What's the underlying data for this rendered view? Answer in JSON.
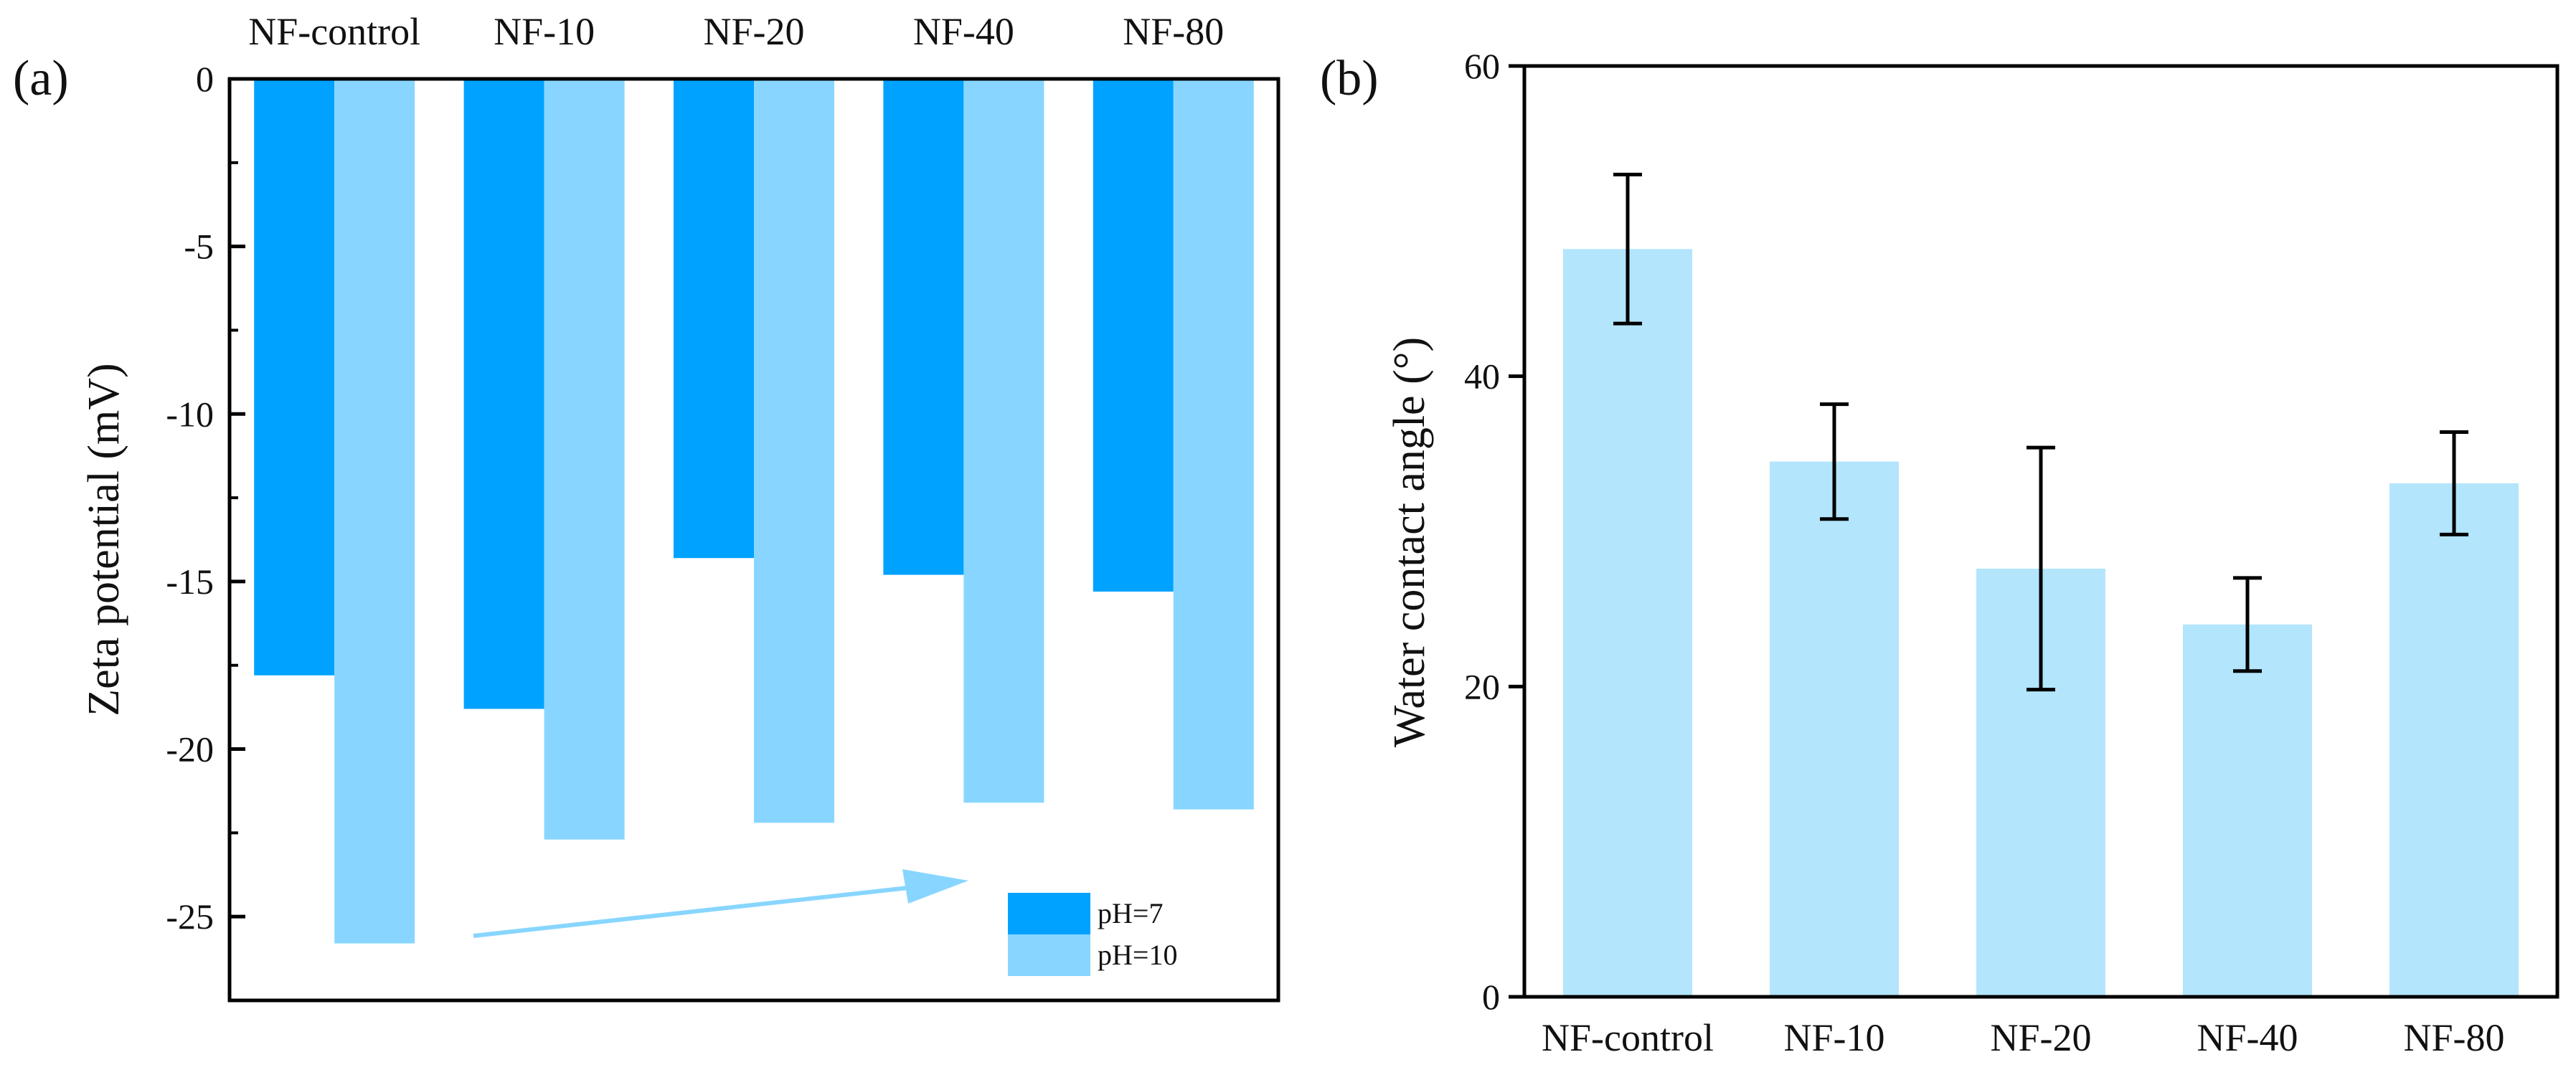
{
  "colors": {
    "ph7": "#00a2ff",
    "ph10": "#88d6ff",
    "wca_bar": "#b3e5fc",
    "arrow": "#88d6ff",
    "axis": "#000000"
  },
  "chart_data": [
    {
      "panel": "(a)",
      "type": "bar",
      "orientation": "vertical-downward",
      "categories": [
        "NF-control",
        "NF-10",
        "NF-20",
        "NF-40",
        "NF-80"
      ],
      "series": [
        {
          "name": "pH=7",
          "values": [
            -17.8,
            -18.8,
            -14.3,
            -14.8,
            -15.3
          ]
        },
        {
          "name": "pH=10",
          "values": [
            -25.8,
            -22.7,
            -22.2,
            -21.6,
            -21.8
          ]
        }
      ],
      "xlabel": "",
      "ylabel": "Zeta potential (mV)",
      "ylim": [
        -27.5,
        0
      ],
      "yticks": [
        0,
        -5,
        -10,
        -15,
        -20,
        -25
      ],
      "ytick_labels": [
        "0",
        "-5",
        "-10",
        "-15",
        "-20",
        "-25"
      ],
      "x_axis_position": "top",
      "grid": false,
      "legend": "bottom-right",
      "annotation": "arrow indicating upward trend"
    },
    {
      "panel": "(b)",
      "type": "bar",
      "categories": [
        "NF-control",
        "NF-10",
        "NF-20",
        "NF-40",
        "NF-80"
      ],
      "values": [
        48.2,
        34.5,
        27.6,
        24.0,
        33.1
      ],
      "errors": [
        4.8,
        3.7,
        7.8,
        3.0,
        3.3
      ],
      "xlabel": "",
      "ylabel": "Water contact angle (°)",
      "ylim": [
        0,
        60
      ],
      "yticks": [
        0,
        20,
        40,
        60
      ],
      "ytick_labels": [
        "0",
        "20",
        "40",
        "60"
      ],
      "grid": false,
      "legend": "none"
    }
  ]
}
